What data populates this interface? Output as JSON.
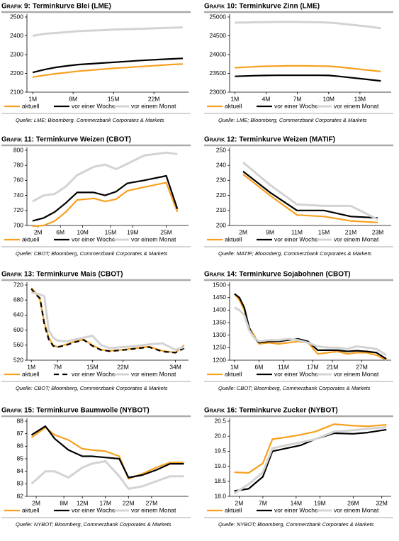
{
  "chart_data": [
    {
      "type": "line",
      "label": "Grafik 9:",
      "title": "Terminkurve Blei (LME)",
      "source": "Quelle: LME; Bloomberg, Commerzbank Corporates & Markets",
      "x": [
        1,
        3,
        5,
        7,
        9,
        11,
        13,
        15,
        17,
        19,
        21,
        23,
        25,
        27
      ],
      "xlim": [
        0,
        28
      ],
      "xticks": [
        {
          "value": 1,
          "label": "1M"
        },
        {
          "value": 8,
          "label": "8M"
        },
        {
          "value": 15,
          "label": "15M"
        },
        {
          "value": 22,
          "label": "22M"
        }
      ],
      "ylim": [
        2100,
        2500
      ],
      "yticks": [
        2100,
        2200,
        2300,
        2400,
        2500
      ],
      "series": [
        {
          "name": "aktuell",
          "color": "#f7a01d",
          "values": [
            2180,
            2190,
            2198,
            2205,
            2212,
            2217,
            2222,
            2227,
            2231,
            2235,
            2239,
            2243,
            2247,
            2250
          ]
        },
        {
          "name": "vor einer Woche",
          "color": "#000000",
          "values": [
            2205,
            2220,
            2232,
            2240,
            2247,
            2251,
            2255,
            2259,
            2263,
            2267,
            2271,
            2274,
            2277,
            2280
          ]
        },
        {
          "name": "vor einem Monat",
          "color": "#d3d3d3",
          "values": [
            2400,
            2410,
            2415,
            2420,
            2425,
            2428,
            2430,
            2433,
            2435,
            2437,
            2439,
            2441,
            2443,
            2445
          ]
        }
      ]
    },
    {
      "type": "line",
      "label": "Grafik 10:",
      "title": "Terminkurve Zinn (LME)",
      "source": "Quelle: LME; Bloomberg, Commerzbank Corporates & Markets",
      "x": [
        1,
        2,
        3,
        4,
        5,
        6,
        7,
        8,
        9,
        10,
        11,
        12,
        13,
        14,
        15
      ],
      "xlim": [
        0.5,
        16
      ],
      "xticks": [
        {
          "value": 1,
          "label": "1M"
        },
        {
          "value": 4,
          "label": "4M"
        },
        {
          "value": 7,
          "label": "7M"
        },
        {
          "value": 10,
          "label": "10M"
        },
        {
          "value": 13,
          "label": "13M"
        }
      ],
      "ylim": [
        23000,
        25000
      ],
      "yticks": [
        23000,
        23500,
        24000,
        24500,
        25000
      ],
      "series": [
        {
          "name": "aktuell",
          "color": "#f7a01d",
          "values": [
            23650,
            23665,
            23680,
            23690,
            23695,
            23700,
            23700,
            23700,
            23695,
            23690,
            23670,
            23640,
            23610,
            23580,
            23550
          ]
        },
        {
          "name": "vor einer Woche",
          "color": "#000000",
          "values": [
            23420,
            23430,
            23440,
            23445,
            23450,
            23450,
            23450,
            23450,
            23450,
            23445,
            23420,
            23390,
            23360,
            23330,
            23300
          ]
        },
        {
          "name": "vor einem Monat",
          "color": "#d3d3d3",
          "values": [
            24850,
            24855,
            24860,
            24865,
            24870,
            24870,
            24870,
            24865,
            24860,
            24850,
            24830,
            24800,
            24770,
            24740,
            24700
          ]
        }
      ]
    },
    {
      "type": "line",
      "label": "Grafik 11:",
      "title": "Terminkurve Weizen (CBOT)",
      "source": "Quelle: CBOT; Bloomberg, Commerzbank Corporates & Markets",
      "x": [
        1,
        3,
        5,
        7,
        9,
        12,
        14,
        16,
        18,
        21,
        25,
        27
      ],
      "xlim": [
        0,
        29
      ],
      "xticks": [
        {
          "value": 2,
          "label": "2M"
        },
        {
          "value": 6,
          "label": "6M"
        },
        {
          "value": 10,
          "label": "10M"
        },
        {
          "value": 15,
          "label": "15M"
        },
        {
          "value": 19,
          "label": "19M"
        },
        {
          "value": 25,
          "label": "25M"
        }
      ],
      "ylim": [
        700,
        800
      ],
      "yticks": [
        700,
        720,
        740,
        760,
        780,
        800
      ],
      "series": [
        {
          "name": "aktuell",
          "color": "#f7a01d",
          "values": [
            699,
            700,
            706,
            718,
            734,
            736,
            732,
            735,
            746,
            751,
            757,
            718
          ]
        },
        {
          "name": "vor einer Woche",
          "color": "#000000",
          "values": [
            706,
            710,
            718,
            730,
            744,
            744,
            740,
            745,
            756,
            760,
            766,
            722
          ]
        },
        {
          "name": "vor einem Monat",
          "color": "#d3d3d3",
          "values": [
            732,
            740,
            742,
            752,
            767,
            778,
            781,
            775,
            782,
            793,
            797,
            795
          ]
        }
      ]
    },
    {
      "type": "line",
      "label": "Grafik 12:",
      "title": "Terminkurve Weizen (MATIF)",
      "source": "Quelle: MATIF; Bloomberg, Commerzbank Corporates & Markets",
      "categories": [
        "2M",
        "9M",
        "11M",
        "15M",
        "21M",
        "23M"
      ],
      "ylim": [
        200,
        250
      ],
      "yticks": [
        200,
        210,
        220,
        230,
        240,
        250
      ],
      "series": [
        {
          "name": "aktuell",
          "color": "#f7a01d",
          "values": [
            234,
            220,
            207,
            206,
            203,
            202
          ]
        },
        {
          "name": "vor einer Woche",
          "color": "#000000",
          "values": [
            236,
            222,
            210,
            210,
            206,
            205
          ]
        },
        {
          "name": "vor einem Monat",
          "color": "#d3d3d3",
          "values": [
            242,
            227,
            214,
            213,
            213,
            204
          ]
        }
      ]
    },
    {
      "type": "line",
      "label": "Grafik 13:",
      "title": "Terminkurve Mais (CBOT)",
      "source": "Quelle: CBOT; Bloomberg, Commerzbank Corporates & Markets",
      "x": [
        1,
        2,
        3,
        4,
        5,
        6,
        7,
        9,
        11,
        13,
        15,
        17,
        19,
        22,
        25,
        28,
        31,
        34,
        36
      ],
      "xlim": [
        0,
        37
      ],
      "xticks": [
        {
          "value": 1,
          "label": "1M"
        },
        {
          "value": 7,
          "label": "7M"
        },
        {
          "value": 15,
          "label": "15M"
        },
        {
          "value": 22,
          "label": "22M"
        },
        {
          "value": 34,
          "label": "34M"
        }
      ],
      "ylim": [
        520,
        720
      ],
      "yticks": [
        520,
        560,
        600,
        640,
        680,
        720
      ],
      "series": [
        {
          "name": "aktuell",
          "color": "#f7a01d",
          "values": [
            712,
            700,
            680,
            620,
            580,
            560,
            555,
            562,
            570,
            575,
            560,
            548,
            545,
            548,
            552,
            556,
            545,
            540,
            560
          ]
        },
        {
          "name": "vor einer Woche",
          "color": "#000000",
          "dash": true,
          "values": [
            710,
            695,
            685,
            615,
            575,
            558,
            555,
            560,
            568,
            574,
            558,
            547,
            544,
            547,
            551,
            555,
            543,
            540,
            552
          ]
        },
        {
          "name": "vor einem Monat",
          "color": "#d3d3d3",
          "values": [
            700,
            698,
            695,
            690,
            600,
            580,
            572,
            570,
            575,
            580,
            585,
            560,
            552,
            555,
            558,
            562,
            565,
            548,
            555
          ]
        }
      ]
    },
    {
      "type": "line",
      "label": "Grafik 14:",
      "title": "Terminkurve Sojabohnen (CBOT)",
      "source": "Quelle: CBOT; Bloomberg, Commerzbank Corporates & Markets",
      "x": [
        1,
        2,
        3,
        4,
        5,
        6,
        8,
        10,
        12,
        14,
        16,
        18,
        20,
        22,
        24,
        26,
        28,
        30,
        32
      ],
      "xlim": [
        0,
        33
      ],
      "xticks": [
        {
          "value": 1,
          "label": "1M"
        },
        {
          "value": 6,
          "label": "6M"
        },
        {
          "value": 11,
          "label": "11M"
        },
        {
          "value": 17,
          "label": "17M"
        },
        {
          "value": 21,
          "label": "21M"
        },
        {
          "value": 27,
          "label": "27M"
        }
      ],
      "ylim": [
        1200,
        1500
      ],
      "yticks": [
        1200,
        1250,
        1300,
        1350,
        1400,
        1450,
        1500
      ],
      "series": [
        {
          "name": "aktuell",
          "color": "#f7a01d",
          "values": [
            1465,
            1440,
            1400,
            1330,
            1300,
            1265,
            1270,
            1265,
            1270,
            1275,
            1270,
            1225,
            1230,
            1235,
            1225,
            1230,
            1230,
            1220,
            1200
          ]
        },
        {
          "name": "vor einer Woche",
          "color": "#000000",
          "values": [
            1465,
            1450,
            1410,
            1330,
            1290,
            1270,
            1275,
            1275,
            1280,
            1285,
            1275,
            1240,
            1240,
            1240,
            1235,
            1238,
            1235,
            1230,
            1205
          ]
        },
        {
          "name": "vor einem Monat",
          "color": "#d3d3d3",
          "values": [
            1410,
            1400,
            1380,
            1320,
            1290,
            1275,
            1280,
            1280,
            1285,
            1280,
            1270,
            1255,
            1250,
            1250,
            1245,
            1255,
            1250,
            1245,
            1220
          ]
        }
      ]
    },
    {
      "type": "line",
      "label": "Grafik 15:",
      "title": "Terminkurve Baumwolle (NYBOT)",
      "source": "Quelle: NYBOT; Bloomberg, Commerzbank Corporates & Markets",
      "x": [
        1,
        4,
        6,
        9,
        12,
        14,
        17,
        20,
        22,
        25,
        28,
        31,
        34
      ],
      "xlim": [
        0,
        35
      ],
      "xticks": [
        {
          "value": 2,
          "label": "2M"
        },
        {
          "value": 8,
          "label": "8M"
        },
        {
          "value": 12,
          "label": "12M"
        },
        {
          "value": 17,
          "label": "17M"
        },
        {
          "value": 22,
          "label": "22M"
        },
        {
          "value": 27,
          "label": "27M"
        }
      ],
      "ylim": [
        82,
        88
      ],
      "yticks": [
        82,
        83,
        84,
        85,
        86,
        87,
        88
      ],
      "series": [
        {
          "name": "aktuell",
          "color": "#f7a01d",
          "values": [
            86.7,
            87.5,
            86.9,
            86.5,
            85.8,
            85.7,
            85.6,
            85.2,
            83.4,
            83.8,
            84.3,
            84.7,
            84.7
          ]
        },
        {
          "name": "vor einer Woche",
          "color": "#000000",
          "values": [
            86.9,
            87.6,
            86.6,
            85.7,
            85.2,
            85.2,
            85.1,
            85.0,
            83.5,
            83.7,
            84.1,
            84.6,
            84.6
          ]
        },
        {
          "name": "vor einem Monat",
          "color": "#d3d3d3",
          "values": [
            83.0,
            84.0,
            84.0,
            83.5,
            84.3,
            84.6,
            84.8,
            83.6,
            82.6,
            82.8,
            83.2,
            83.6,
            83.6
          ]
        }
      ]
    },
    {
      "type": "line",
      "label": "Grafik 16:",
      "title": "Terminkurve Zucker (NYBOT)",
      "source": "Quelle: NYBOT; Bloomberg, Commerzbank Corporates & Markets",
      "x": [
        1,
        4,
        7,
        9,
        12,
        15,
        18,
        22,
        26,
        29,
        33
      ],
      "xlim": [
        0,
        34
      ],
      "xticks": [
        {
          "value": 2,
          "label": "2M"
        },
        {
          "value": 7,
          "label": "7M"
        },
        {
          "value": 14,
          "label": "14M"
        },
        {
          "value": 19,
          "label": "19M"
        },
        {
          "value": 26,
          "label": "26M"
        },
        {
          "value": 32,
          "label": "32M"
        }
      ],
      "ylim": [
        18,
        20.5
      ],
      "yticks": [
        {
          "value": 18,
          "label": "18.0"
        },
        18.5,
        {
          "value": 19,
          "label": "19.0"
        },
        19.5,
        {
          "value": 20,
          "label": "20.0"
        },
        20.5
      ],
      "series": [
        {
          "name": "aktuell",
          "color": "#f7a01d",
          "values": [
            18.8,
            18.78,
            19.1,
            19.9,
            19.97,
            20.05,
            20.15,
            20.4,
            20.35,
            20.33,
            20.38
          ]
        },
        {
          "name": "vor einer Woche",
          "color": "#000000",
          "values": [
            18.18,
            18.25,
            18.65,
            19.5,
            19.6,
            19.7,
            19.9,
            20.1,
            20.08,
            20.12,
            20.22
          ]
        },
        {
          "name": "vor einem Monat",
          "color": "#d3d3d3",
          "values": [
            18.1,
            18.4,
            18.8,
            19.6,
            19.7,
            19.8,
            19.9,
            20.15,
            20.2,
            20.25,
            20.3
          ]
        }
      ]
    }
  ]
}
